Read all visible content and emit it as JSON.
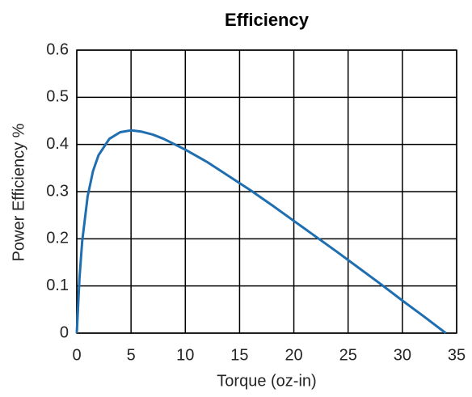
{
  "chart_data": {
    "type": "line",
    "title": "Efficiency",
    "xlabel": "Torque (oz-in)",
    "ylabel": "Power Efficiency %",
    "x": [
      0,
      0.25,
      0.5,
      1,
      1.5,
      2,
      3,
      4,
      5,
      6,
      7,
      8,
      10,
      12,
      14,
      16,
      18,
      20,
      22,
      24,
      26,
      28,
      30,
      32,
      34
    ],
    "values": [
      0,
      0.117,
      0.195,
      0.29,
      0.344,
      0.377,
      0.412,
      0.426,
      0.43,
      0.427,
      0.421,
      0.412,
      0.389,
      0.363,
      0.333,
      0.303,
      0.271,
      0.238,
      0.205,
      0.172,
      0.138,
      0.104,
      0.069,
      0.035,
      0
    ],
    "color": "#1f6fb0",
    "xlim": [
      0,
      35
    ],
    "xticks": [
      0,
      5,
      10,
      15,
      20,
      25,
      30,
      35
    ],
    "ylim": [
      0,
      0.6
    ],
    "yticks": [
      0,
      0.1,
      0.2,
      0.3,
      0.4,
      0.5,
      0.6
    ],
    "grid": true
  }
}
